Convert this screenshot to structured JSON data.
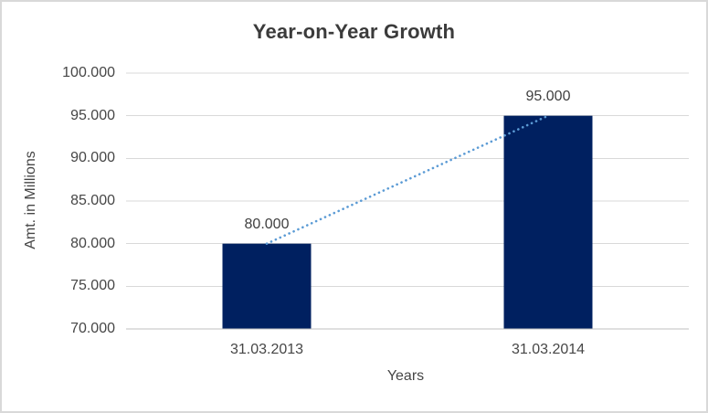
{
  "frame": {
    "background": "#ffffff",
    "border_color": "#d9d9d9"
  },
  "chart_data": {
    "type": "bar",
    "title": "Year-on-Year Growth",
    "xlabel": "Years",
    "ylabel": "Amt. in Millions",
    "categories": [
      "31.03.2013",
      "31.03.2014"
    ],
    "values": [
      80000,
      95000
    ],
    "data_labels": [
      "80.000",
      "95.000"
    ],
    "ylim": [
      70000,
      100000
    ],
    "yticks": [
      100000,
      95000,
      90000,
      85000,
      80000,
      75000,
      70000
    ],
    "ytick_labels": [
      "100.000",
      "95.000",
      "90.000",
      "85.000",
      "80.000",
      "75.000",
      "70.000"
    ],
    "grid": true,
    "legend": false,
    "trendline": {
      "style": "dotted",
      "color": "#5b9bd5",
      "connects": [
        "31.03.2013",
        "31.03.2014"
      ]
    },
    "colors": {
      "bar": "#002060",
      "trendline": "#5b9bd5",
      "gridline": "#d9d9d9",
      "axis_line": "#bfbfbf",
      "title_text": "#3b3b3b",
      "label_text": "#464646",
      "data_label_text": "#3f3f3f"
    }
  }
}
